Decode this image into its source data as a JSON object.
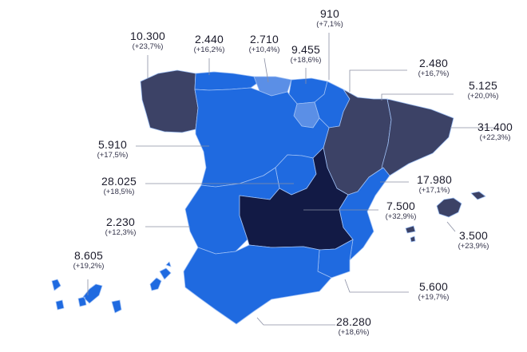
{
  "colors": {
    "light": "#5b8fe6",
    "medium": "#1f6ae0",
    "dark": "#3c4266",
    "darkest": "#121a45",
    "border": "#9fc0f5"
  },
  "regions": [
    {
      "id": "galicia",
      "value": "10.300",
      "change": "(+23,7%)",
      "shade": "dark"
    },
    {
      "id": "asturias",
      "value": "2.440",
      "change": "(+16,2%)",
      "shade": "medium"
    },
    {
      "id": "cantabria",
      "value": "2.710",
      "change": "(+10,4%)",
      "shade": "light"
    },
    {
      "id": "pais-vasco",
      "value": "9.455",
      "change": "(+18,6%)",
      "shade": "medium"
    },
    {
      "id": "navarra",
      "value": "2.480",
      "change": "(+16,7%)",
      "shade": "medium"
    },
    {
      "id": "la-rioja",
      "value": "910",
      "change": "(+7,1%)",
      "shade": "light"
    },
    {
      "id": "aragon",
      "value": "5.125",
      "change": "(+20,0%)",
      "shade": "dark"
    },
    {
      "id": "cataluna",
      "value": "31.400",
      "change": "(+22,3%)",
      "shade": "dark"
    },
    {
      "id": "castilla-y-leon",
      "value": "5.910",
      "change": "(+17,5%)",
      "shade": "medium"
    },
    {
      "id": "madrid",
      "value": "28.025",
      "change": "(+18,5%)",
      "shade": "medium"
    },
    {
      "id": "extremadura",
      "value": "2.230",
      "change": "(+12,3%)",
      "shade": "medium"
    },
    {
      "id": "castilla-la-mancha",
      "value": "7.500",
      "change": "(+32,9%)",
      "shade": "darkest"
    },
    {
      "id": "comunidad-valenciana",
      "value": "17.980",
      "change": "(+17,1%)",
      "shade": "medium"
    },
    {
      "id": "murcia",
      "value": "5.600",
      "change": "(+19,7%)",
      "shade": "medium"
    },
    {
      "id": "andalucia",
      "value": "28.280",
      "change": "(+18,6%)",
      "shade": "medium"
    },
    {
      "id": "baleares",
      "value": "3.500",
      "change": "(+23,9%)",
      "shade": "dark"
    },
    {
      "id": "canarias",
      "value": "8.605",
      "change": "(+19,2%)",
      "shade": "medium"
    }
  ]
}
